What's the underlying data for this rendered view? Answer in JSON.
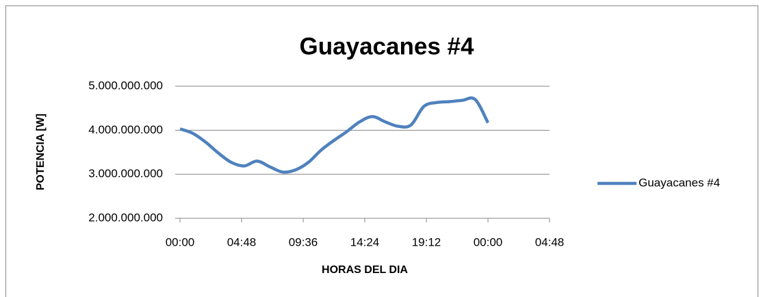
{
  "chart_data": {
    "type": "line",
    "title": "Guayacanes #4",
    "x_label": "HORAS DEL DIA",
    "y_label": "POTENCIA [W]",
    "x": [
      0,
      1,
      2,
      3,
      4,
      5,
      6,
      7,
      8,
      9,
      10,
      11,
      12,
      13,
      14,
      15,
      16,
      17,
      18,
      19,
      20,
      21,
      22,
      23,
      24
    ],
    "series": [
      {
        "name": "Guayacanes #4",
        "color": "#4f81bd",
        "values": [
          4030000000,
          3930000000,
          3730000000,
          3480000000,
          3270000000,
          3190000000,
          3300000000,
          3170000000,
          3050000000,
          3100000000,
          3270000000,
          3550000000,
          3770000000,
          3970000000,
          4190000000,
          4310000000,
          4190000000,
          4090000000,
          4120000000,
          4540000000,
          4630000000,
          4650000000,
          4680000000,
          4700000000,
          4170000000
        ]
      }
    ],
    "xlim": [
      0,
      28.8
    ],
    "xticks": [
      {
        "value": 0,
        "label": "00:00"
      },
      {
        "value": 4.8,
        "label": "04:48"
      },
      {
        "value": 9.6,
        "label": "09:36"
      },
      {
        "value": 14.4,
        "label": "14:24"
      },
      {
        "value": 19.2,
        "label": "19:12"
      },
      {
        "value": 24,
        "label": "00:00"
      },
      {
        "value": 28.8,
        "label": "04:48"
      }
    ],
    "ylim": [
      2000000000,
      5000000000
    ],
    "yticks": [
      {
        "value": 2000000000,
        "label": "2.000.000.000"
      },
      {
        "value": 3000000000,
        "label": "3.000.000.000"
      },
      {
        "value": 4000000000,
        "label": "4.000.000.000"
      },
      {
        "value": 5000000000,
        "label": "5.000.000.000"
      }
    ],
    "grid": true,
    "legend": "right"
  }
}
